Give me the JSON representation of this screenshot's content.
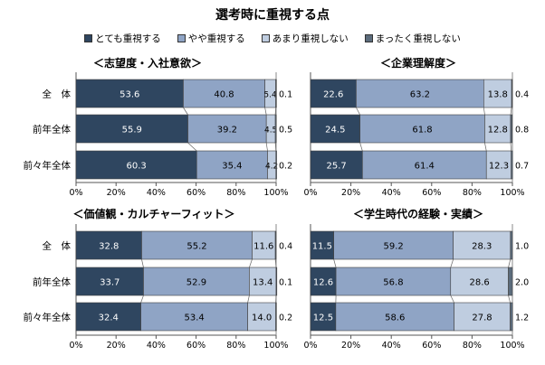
{
  "title": "選考時に重視する点",
  "legend": [
    {
      "label": "とても重視する",
      "color": "#2f4660"
    },
    {
      "label": "やや重視する",
      "color": "#8fa4c5"
    },
    {
      "label": "あまり重視しない",
      "color": "#bfcde0"
    },
    {
      "label": "まったく重視しない",
      "color": "#5c6c7c"
    }
  ],
  "chart_data": [
    {
      "type": "bar",
      "orientation": "horizontal",
      "stacked": true,
      "title": "＜志望度・入社意欲＞",
      "categories": [
        "全　体",
        "前年全体",
        "前々年全体"
      ],
      "xlim": [
        0,
        100
      ],
      "xticks": [
        "0%",
        "20%",
        "40%",
        "60%",
        "80%",
        "100%"
      ],
      "series": [
        {
          "name": "とても重視する",
          "values": [
            53.6,
            55.9,
            60.3
          ]
        },
        {
          "name": "やや重視する",
          "values": [
            40.8,
            39.2,
            35.4
          ]
        },
        {
          "name": "あまり重視しない",
          "values": [
            5.4,
            4.5,
            4.2
          ]
        },
        {
          "name": "まったく重視しない",
          "values": [
            0.1,
            0.5,
            0.2
          ]
        }
      ]
    },
    {
      "type": "bar",
      "orientation": "horizontal",
      "stacked": true,
      "title": "＜企業理解度＞",
      "categories": [
        "全　体",
        "前年全体",
        "前々年全体"
      ],
      "xlim": [
        0,
        100
      ],
      "xticks": [
        "0%",
        "20%",
        "40%",
        "60%",
        "80%",
        "100%"
      ],
      "series": [
        {
          "name": "とても重視する",
          "values": [
            22.6,
            24.5,
            25.7
          ]
        },
        {
          "name": "やや重視する",
          "values": [
            63.2,
            61.8,
            61.4
          ]
        },
        {
          "name": "あまり重視しない",
          "values": [
            13.8,
            12.8,
            12.3
          ]
        },
        {
          "name": "まったく重視しない",
          "values": [
            0.4,
            0.8,
            0.7
          ]
        }
      ]
    },
    {
      "type": "bar",
      "orientation": "horizontal",
      "stacked": true,
      "title": "＜価値観・カルチャーフィット＞",
      "categories": [
        "全　体",
        "前年全体",
        "前々年全体"
      ],
      "xlim": [
        0,
        100
      ],
      "xticks": [
        "0%",
        "20%",
        "40%",
        "60%",
        "80%",
        "100%"
      ],
      "series": [
        {
          "name": "とても重視する",
          "values": [
            32.8,
            33.7,
            32.4
          ]
        },
        {
          "name": "やや重視する",
          "values": [
            55.2,
            52.9,
            53.4
          ]
        },
        {
          "name": "あまり重視しない",
          "values": [
            11.6,
            13.4,
            14.0
          ]
        },
        {
          "name": "まったく重視しない",
          "values": [
            0.4,
            0.1,
            0.2
          ]
        }
      ]
    },
    {
      "type": "bar",
      "orientation": "horizontal",
      "stacked": true,
      "title": "＜学生時代の経験・実績＞",
      "categories": [
        "全　体",
        "前年全体",
        "前々年全体"
      ],
      "xlim": [
        0,
        100
      ],
      "xticks": [
        "0%",
        "20%",
        "40%",
        "60%",
        "80%",
        "100%"
      ],
      "series": [
        {
          "name": "とても重視する",
          "values": [
            11.5,
            12.6,
            12.5
          ]
        },
        {
          "name": "やや重視する",
          "values": [
            59.2,
            56.8,
            58.6
          ]
        },
        {
          "name": "あまり重視しない",
          "values": [
            28.3,
            28.6,
            27.8
          ]
        },
        {
          "name": "まったく重視しない",
          "values": [
            1.0,
            2.0,
            1.2
          ]
        }
      ]
    }
  ]
}
